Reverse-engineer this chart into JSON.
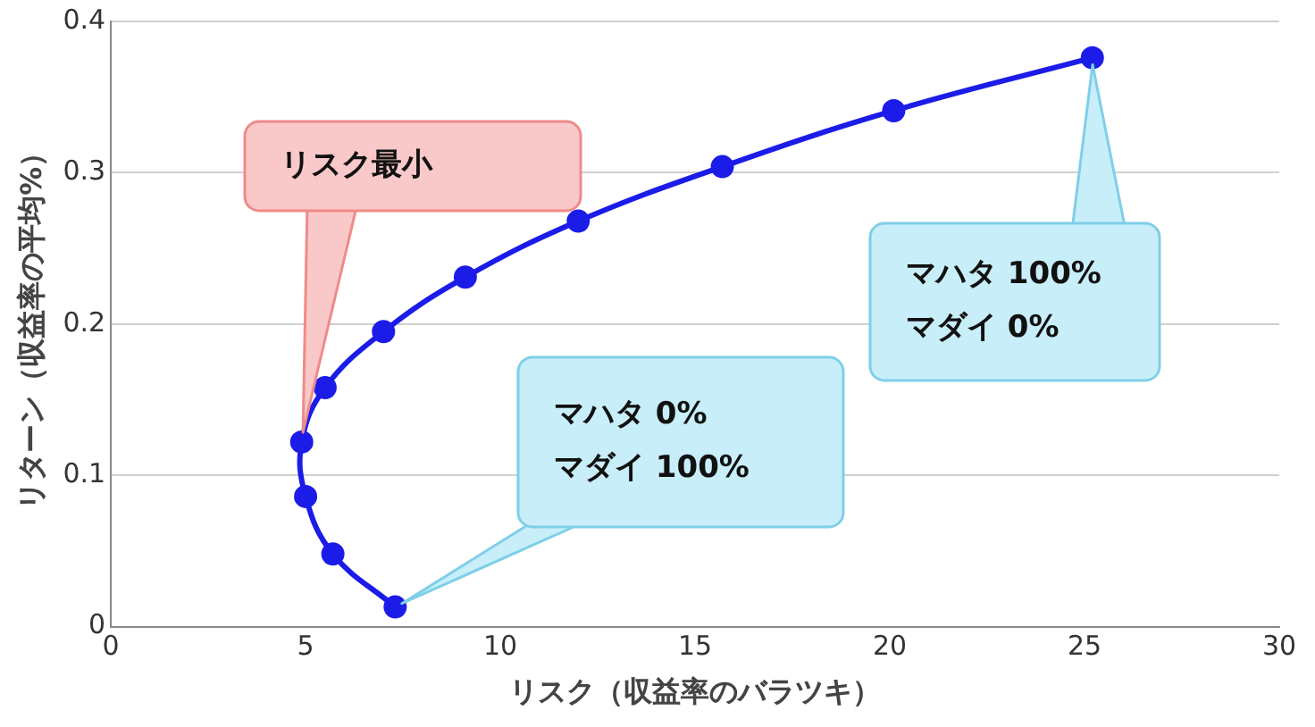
{
  "chart_data": {
    "type": "line",
    "xlabel": "リスク（収益率のバラツキ）",
    "ylabel": "リターン（収益率の平均%）",
    "x": [
      7.3,
      5.7,
      5.0,
      4.9,
      5.5,
      7.0,
      9.1,
      12.0,
      15.7,
      20.1,
      25.2
    ],
    "series": [
      {
        "color": "#1c1ce8",
        "values": [
          0.013,
          0.048,
          0.086,
          0.122,
          0.158,
          0.195,
          0.231,
          0.268,
          0.304,
          0.341,
          0.376
        ]
      }
    ],
    "xlim": [
      0,
      30
    ],
    "xticks": [
      0,
      5,
      10,
      15,
      20,
      25,
      30
    ],
    "ylim": [
      0,
      0.4
    ],
    "yticks": [
      0,
      0.1,
      0.2,
      0.3,
      0.4
    ],
    "grid": "y",
    "legend": false,
    "marker": "circle",
    "line_style": "solid",
    "annotations": [
      {
        "text": "リスク最小",
        "x": 4.9,
        "y": 0.122
      },
      {
        "text": "マハタ 100%\nマダイ 0%",
        "x": 25.2,
        "y": 0.376
      },
      {
        "text": "マハタ 0%\nマダイ 100%",
        "x": 7.3,
        "y": 0.013
      }
    ]
  }
}
